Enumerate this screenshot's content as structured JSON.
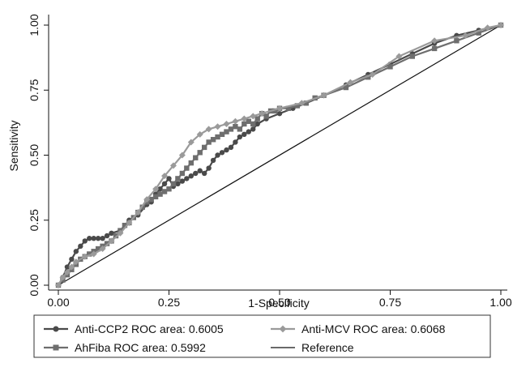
{
  "chart_data": {
    "type": "line",
    "title": "",
    "xlabel": "1-Specificity",
    "ylabel": "Sensitivity",
    "xlim": [
      0,
      1
    ],
    "ylim": [
      0,
      1
    ],
    "x_ticks": [
      "0.00",
      "0.25",
      "0.50",
      "0.75",
      "1.00"
    ],
    "y_ticks": [
      "0.00",
      "0.25",
      "0.50",
      "0.75",
      "1.00"
    ],
    "grid": false,
    "legend_position": "bottom",
    "series": [
      {
        "name": "Anti-CCP2 ROC area: 0.6005",
        "color": "#4a4a4a",
        "marker": "circle",
        "x": [
          0,
          0.01,
          0.02,
          0.03,
          0.04,
          0.05,
          0.06,
          0.07,
          0.08,
          0.09,
          0.1,
          0.11,
          0.12,
          0.14,
          0.16,
          0.18,
          0.2,
          0.21,
          0.22,
          0.23,
          0.24,
          0.25,
          0.26,
          0.27,
          0.28,
          0.29,
          0.3,
          0.31,
          0.32,
          0.33,
          0.34,
          0.35,
          0.36,
          0.37,
          0.38,
          0.39,
          0.4,
          0.41,
          0.42,
          0.43,
          0.44,
          0.45,
          0.47,
          0.5,
          0.53,
          0.56,
          0.6,
          0.65,
          0.7,
          0.75,
          0.8,
          0.85,
          0.9,
          0.95,
          1.0
        ],
        "y": [
          0,
          0.03,
          0.07,
          0.1,
          0.13,
          0.15,
          0.17,
          0.18,
          0.18,
          0.18,
          0.18,
          0.19,
          0.2,
          0.21,
          0.25,
          0.27,
          0.31,
          0.32,
          0.35,
          0.37,
          0.39,
          0.41,
          0.38,
          0.39,
          0.4,
          0.41,
          0.42,
          0.43,
          0.44,
          0.43,
          0.45,
          0.48,
          0.5,
          0.51,
          0.52,
          0.53,
          0.55,
          0.57,
          0.58,
          0.59,
          0.6,
          0.62,
          0.64,
          0.66,
          0.68,
          0.7,
          0.73,
          0.77,
          0.81,
          0.85,
          0.89,
          0.93,
          0.96,
          0.98,
          1.0
        ]
      },
      {
        "name": "Anti-MCV ROC area: 0.6068",
        "color": "#9a9a9a",
        "marker": "diamond",
        "x": [
          0,
          0.01,
          0.02,
          0.03,
          0.04,
          0.06,
          0.08,
          0.1,
          0.12,
          0.14,
          0.16,
          0.18,
          0.2,
          0.22,
          0.24,
          0.26,
          0.28,
          0.3,
          0.32,
          0.34,
          0.36,
          0.38,
          0.4,
          0.42,
          0.44,
          0.46,
          0.5,
          0.55,
          0.6,
          0.66,
          0.71,
          0.77,
          0.85,
          0.92,
          0.97,
          1.0
        ],
        "y": [
          0,
          0.03,
          0.05,
          0.07,
          0.09,
          0.11,
          0.12,
          0.14,
          0.17,
          0.2,
          0.24,
          0.28,
          0.33,
          0.37,
          0.42,
          0.46,
          0.5,
          0.55,
          0.58,
          0.6,
          0.61,
          0.62,
          0.63,
          0.64,
          0.65,
          0.66,
          0.68,
          0.7,
          0.73,
          0.78,
          0.81,
          0.88,
          0.94,
          0.96,
          0.99,
          1.0
        ]
      },
      {
        "name": "AhFiba ROC area: 0.5992",
        "color": "#6e6e6e",
        "marker": "square",
        "x": [
          0,
          0.01,
          0.02,
          0.03,
          0.04,
          0.05,
          0.06,
          0.07,
          0.08,
          0.09,
          0.1,
          0.11,
          0.12,
          0.13,
          0.14,
          0.15,
          0.16,
          0.17,
          0.18,
          0.19,
          0.2,
          0.21,
          0.22,
          0.23,
          0.24,
          0.25,
          0.26,
          0.27,
          0.28,
          0.29,
          0.3,
          0.31,
          0.32,
          0.33,
          0.34,
          0.35,
          0.36,
          0.37,
          0.38,
          0.39,
          0.4,
          0.41,
          0.42,
          0.43,
          0.44,
          0.45,
          0.46,
          0.47,
          0.48,
          0.49,
          0.5,
          0.52,
          0.54,
          0.56,
          0.58,
          0.6,
          0.65,
          0.7,
          0.75,
          0.8,
          0.85,
          0.9,
          0.95,
          1.0
        ],
        "y": [
          0,
          0.02,
          0.04,
          0.06,
          0.08,
          0.1,
          0.11,
          0.12,
          0.13,
          0.14,
          0.15,
          0.16,
          0.17,
          0.19,
          0.21,
          0.23,
          0.24,
          0.26,
          0.28,
          0.3,
          0.32,
          0.33,
          0.34,
          0.35,
          0.36,
          0.37,
          0.39,
          0.41,
          0.43,
          0.45,
          0.47,
          0.49,
          0.51,
          0.53,
          0.55,
          0.56,
          0.57,
          0.58,
          0.59,
          0.6,
          0.61,
          0.6,
          0.62,
          0.63,
          0.62,
          0.64,
          0.66,
          0.65,
          0.67,
          0.67,
          0.68,
          0.68,
          0.69,
          0.7,
          0.72,
          0.73,
          0.76,
          0.8,
          0.84,
          0.88,
          0.91,
          0.94,
          0.97,
          1.0
        ]
      },
      {
        "name": "Reference",
        "color": "#111111",
        "marker": "none",
        "x": [
          0,
          1
        ],
        "y": [
          0,
          1
        ]
      }
    ]
  }
}
